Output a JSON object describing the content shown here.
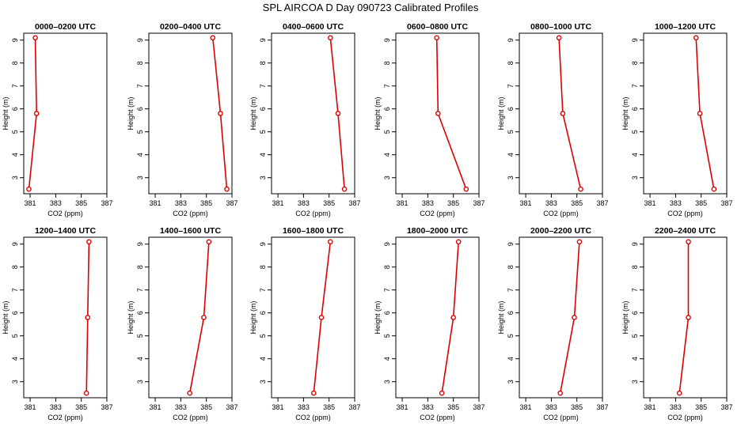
{
  "figure": {
    "title": "SPL AIRCOA D  Day 090723  Calibrated Profiles",
    "line_color": "#dd0000"
  },
  "chart_data": [
    {
      "type": "line",
      "title": "0000–0200 UTC",
      "xlabel": "CO2 (ppm)",
      "ylabel": "Height (m)",
      "xlim": [
        380.5,
        387
      ],
      "ylim": [
        2.3,
        9.3
      ],
      "xticks": [
        "381",
        "383",
        "385",
        "387"
      ],
      "yticks": [
        "3",
        "4",
        "5",
        "6",
        "7",
        "8",
        "9"
      ],
      "x": [
        380.9,
        381.5,
        381.4
      ],
      "y": [
        2.5,
        5.8,
        9.1
      ]
    },
    {
      "type": "line",
      "title": "0200–0400 UTC",
      "xlabel": "CO2 (ppm)",
      "ylabel": "Height (m)",
      "xlim": [
        380.5,
        387
      ],
      "ylim": [
        2.3,
        9.3
      ],
      "xticks": [
        "381",
        "383",
        "385",
        "387"
      ],
      "yticks": [
        "3",
        "4",
        "5",
        "6",
        "7",
        "8",
        "9"
      ],
      "x": [
        386.6,
        386.1,
        385.5
      ],
      "y": [
        2.5,
        5.8,
        9.1
      ]
    },
    {
      "type": "line",
      "title": "0400–0600 UTC",
      "xlabel": "CO2 (ppm)",
      "ylabel": "Height (m)",
      "xlim": [
        380.5,
        387
      ],
      "ylim": [
        2.3,
        9.3
      ],
      "xticks": [
        "381",
        "383",
        "385",
        "387"
      ],
      "yticks": [
        "3",
        "4",
        "5",
        "6",
        "7",
        "8",
        "9"
      ],
      "x": [
        386.2,
        385.7,
        385.1
      ],
      "y": [
        2.5,
        5.8,
        9.1
      ]
    },
    {
      "type": "line",
      "title": "0600–0800 UTC",
      "xlabel": "CO2 (ppm)",
      "ylabel": "Height (m)",
      "xlim": [
        380.5,
        387
      ],
      "ylim": [
        2.3,
        9.3
      ],
      "xticks": [
        "381",
        "383",
        "385",
        "387"
      ],
      "yticks": [
        "3",
        "4",
        "5",
        "6",
        "7",
        "8",
        "9"
      ],
      "x": [
        386.0,
        383.8,
        383.7
      ],
      "y": [
        2.5,
        5.8,
        9.1
      ]
    },
    {
      "type": "line",
      "title": "0800–1000 UTC",
      "xlabel": "CO2 (ppm)",
      "ylabel": "Height (m)",
      "xlim": [
        380.5,
        387
      ],
      "ylim": [
        2.3,
        9.3
      ],
      "xticks": [
        "381",
        "383",
        "385",
        "387"
      ],
      "yticks": [
        "3",
        "4",
        "5",
        "6",
        "7",
        "8",
        "9"
      ],
      "x": [
        385.3,
        383.9,
        383.6
      ],
      "y": [
        2.5,
        5.8,
        9.1
      ]
    },
    {
      "type": "line",
      "title": "1000–1200 UTC",
      "xlabel": "CO2 (ppm)",
      "ylabel": "Height (m)",
      "xlim": [
        380.5,
        387
      ],
      "ylim": [
        2.3,
        9.3
      ],
      "xticks": [
        "381",
        "383",
        "385",
        "387"
      ],
      "yticks": [
        "3",
        "4",
        "5",
        "6",
        "7",
        "8",
        "9"
      ],
      "x": [
        386.0,
        384.9,
        384.6
      ],
      "y": [
        2.5,
        5.8,
        9.1
      ]
    },
    {
      "type": "line",
      "title": "1200–1400 UTC",
      "xlabel": "CO2 (ppm)",
      "ylabel": "Height (m)",
      "xlim": [
        380.5,
        387
      ],
      "ylim": [
        2.3,
        9.3
      ],
      "xticks": [
        "381",
        "383",
        "385",
        "387"
      ],
      "yticks": [
        "3",
        "4",
        "5",
        "6",
        "7",
        "8",
        "9"
      ],
      "x": [
        385.4,
        385.5,
        385.6
      ],
      "y": [
        2.5,
        5.8,
        9.1
      ]
    },
    {
      "type": "line",
      "title": "1400–1600 UTC",
      "xlabel": "CO2 (ppm)",
      "ylabel": "Height (m)",
      "xlim": [
        380.5,
        387
      ],
      "ylim": [
        2.3,
        9.3
      ],
      "xticks": [
        "381",
        "383",
        "385",
        "387"
      ],
      "yticks": [
        "3",
        "4",
        "5",
        "6",
        "7",
        "8",
        "9"
      ],
      "x": [
        383.7,
        384.8,
        385.2
      ],
      "y": [
        2.5,
        5.8,
        9.1
      ]
    },
    {
      "type": "line",
      "title": "1600–1800 UTC",
      "xlabel": "CO2 (ppm)",
      "ylabel": "Height (m)",
      "xlim": [
        380.5,
        387
      ],
      "ylim": [
        2.3,
        9.3
      ],
      "xticks": [
        "381",
        "383",
        "385",
        "387"
      ],
      "yticks": [
        "3",
        "4",
        "5",
        "6",
        "7",
        "8",
        "9"
      ],
      "x": [
        383.8,
        384.4,
        385.1
      ],
      "y": [
        2.5,
        5.8,
        9.1
      ]
    },
    {
      "type": "line",
      "title": "1800–2000 UTC",
      "xlabel": "CO2 (ppm)",
      "ylabel": "Height (m)",
      "xlim": [
        380.5,
        387
      ],
      "ylim": [
        2.3,
        9.3
      ],
      "xticks": [
        "381",
        "383",
        "385",
        "387"
      ],
      "yticks": [
        "3",
        "4",
        "5",
        "6",
        "7",
        "8",
        "9"
      ],
      "x": [
        384.1,
        385.0,
        385.4
      ],
      "y": [
        2.5,
        5.8,
        9.1
      ]
    },
    {
      "type": "line",
      "title": "2000–2200 UTC",
      "xlabel": "CO2 (ppm)",
      "ylabel": "Height (m)",
      "xlim": [
        380.5,
        387
      ],
      "ylim": [
        2.3,
        9.3
      ],
      "xticks": [
        "381",
        "383",
        "385",
        "387"
      ],
      "yticks": [
        "3",
        "4",
        "5",
        "6",
        "7",
        "8",
        "9"
      ],
      "x": [
        383.7,
        384.8,
        385.2
      ],
      "y": [
        2.5,
        5.8,
        9.1
      ]
    },
    {
      "type": "line",
      "title": "2200–2400 UTC",
      "xlabel": "CO2 (ppm)",
      "ylabel": "Height (m)",
      "xlim": [
        380.5,
        387
      ],
      "ylim": [
        2.3,
        9.3
      ],
      "xticks": [
        "381",
        "383",
        "385",
        "387"
      ],
      "yticks": [
        "3",
        "4",
        "5",
        "6",
        "7",
        "8",
        "9"
      ],
      "x": [
        383.3,
        384.0,
        384.0
      ],
      "y": [
        2.5,
        5.8,
        9.1
      ]
    }
  ]
}
